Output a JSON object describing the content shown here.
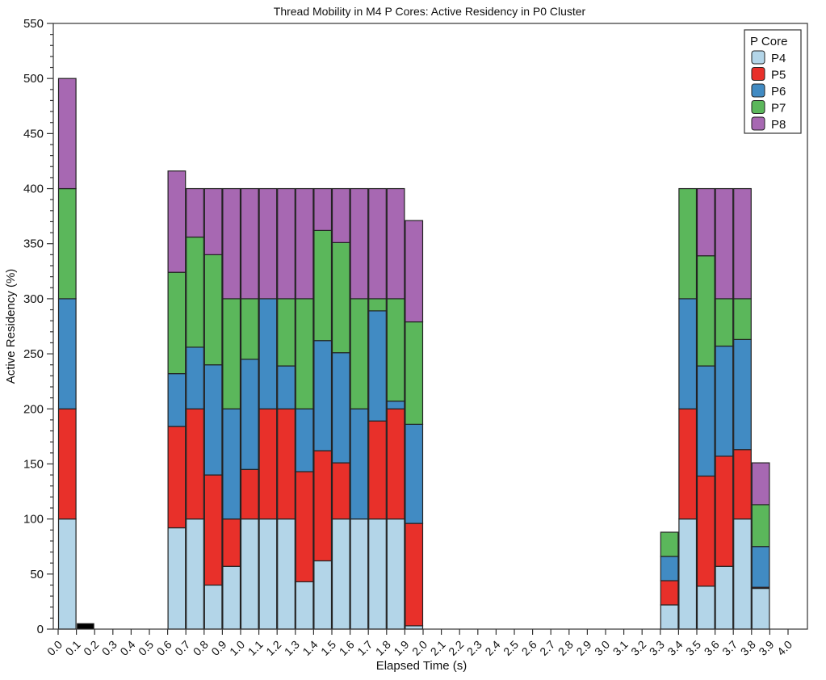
{
  "chart_data": {
    "type": "bar",
    "stacked": true,
    "title": "Thread Mobility in M4 P Cores: Active Residency in P0 Cluster",
    "xlabel": "Elapsed Time (s)",
    "ylabel": "Active Residency (%)",
    "ylim": [
      0,
      550
    ],
    "yticks": [
      0,
      50,
      100,
      150,
      200,
      250,
      300,
      350,
      400,
      450,
      500,
      550
    ],
    "categories": [
      "0.0",
      "0.1",
      "0.2",
      "0.3",
      "0.4",
      "0.5",
      "0.6",
      "0.7",
      "0.8",
      "0.9",
      "1.0",
      "1.1",
      "1.2",
      "1.3",
      "1.4",
      "1.5",
      "1.6",
      "1.7",
      "1.8",
      "1.9",
      "2.0",
      "2.1",
      "2.2",
      "2.3",
      "2.4",
      "2.5",
      "2.6",
      "2.7",
      "2.8",
      "2.9",
      "3.0",
      "3.1",
      "3.2",
      "3.3",
      "3.4",
      "3.5",
      "3.6",
      "3.7",
      "3.8",
      "3.9",
      "4.0"
    ],
    "legend": {
      "title": "P Core",
      "placement": "top-right"
    },
    "series": [
      {
        "name": "P4",
        "color": "#b3d5e8",
        "values": [
          100,
          0,
          0,
          0,
          0,
          0,
          92,
          100,
          40,
          57,
          100,
          100,
          100,
          43,
          62,
          100,
          100,
          100,
          100,
          3,
          0,
          0,
          0,
          0,
          0,
          0,
          0,
          0,
          0,
          0,
          0,
          0,
          0,
          22,
          100,
          39,
          57,
          100,
          37,
          0,
          0
        ]
      },
      {
        "name": "P5",
        "color": "#e8302a",
        "values": [
          100,
          0,
          0,
          0,
          0,
          0,
          92,
          100,
          100,
          43,
          45,
          100,
          100,
          100,
          100,
          51,
          0,
          89,
          100,
          93,
          0,
          0,
          0,
          0,
          0,
          0,
          0,
          0,
          0,
          0,
          0,
          0,
          0,
          22,
          100,
          100,
          100,
          63,
          1,
          0,
          0
        ]
      },
      {
        "name": "P6",
        "color": "#418bc3",
        "values": [
          100,
          0,
          0,
          0,
          0,
          0,
          48,
          56,
          100,
          100,
          100,
          100,
          39,
          57,
          100,
          100,
          100,
          100,
          7,
          90,
          0,
          0,
          0,
          0,
          0,
          0,
          0,
          0,
          0,
          0,
          0,
          0,
          0,
          22,
          100,
          100,
          100,
          100,
          37,
          0,
          0
        ]
      },
      {
        "name": "P7",
        "color": "#5bb75b",
        "values": [
          100,
          0,
          0,
          0,
          0,
          0,
          92,
          100,
          100,
          100,
          55,
          0,
          61,
          100,
          100,
          100,
          100,
          11,
          93,
          93,
          0,
          0,
          0,
          0,
          0,
          0,
          0,
          0,
          0,
          0,
          0,
          0,
          0,
          22,
          100,
          100,
          43,
          37,
          38,
          0,
          0
        ]
      },
      {
        "name": "P8",
        "color": "#a768b2",
        "values": [
          100,
          0,
          0,
          0,
          0,
          0,
          92,
          44,
          60,
          100,
          100,
          100,
          100,
          100,
          38,
          49,
          100,
          100,
          100,
          92,
          0,
          0,
          0,
          0,
          0,
          0,
          0,
          0,
          0,
          0,
          0,
          0,
          0,
          0,
          0,
          61,
          100,
          100,
          38,
          0,
          0
        ]
      }
    ],
    "other": {
      "color": "#000000",
      "values": [
        0,
        5,
        0,
        0,
        0,
        0,
        0,
        0,
        0,
        0,
        0,
        0,
        0,
        0,
        0,
        0,
        0,
        0,
        0,
        0,
        0,
        0,
        0,
        0,
        0,
        0,
        0,
        0,
        0,
        0,
        0,
        0,
        0,
        0,
        0,
        0,
        0,
        0,
        0,
        0,
        0
      ]
    }
  }
}
